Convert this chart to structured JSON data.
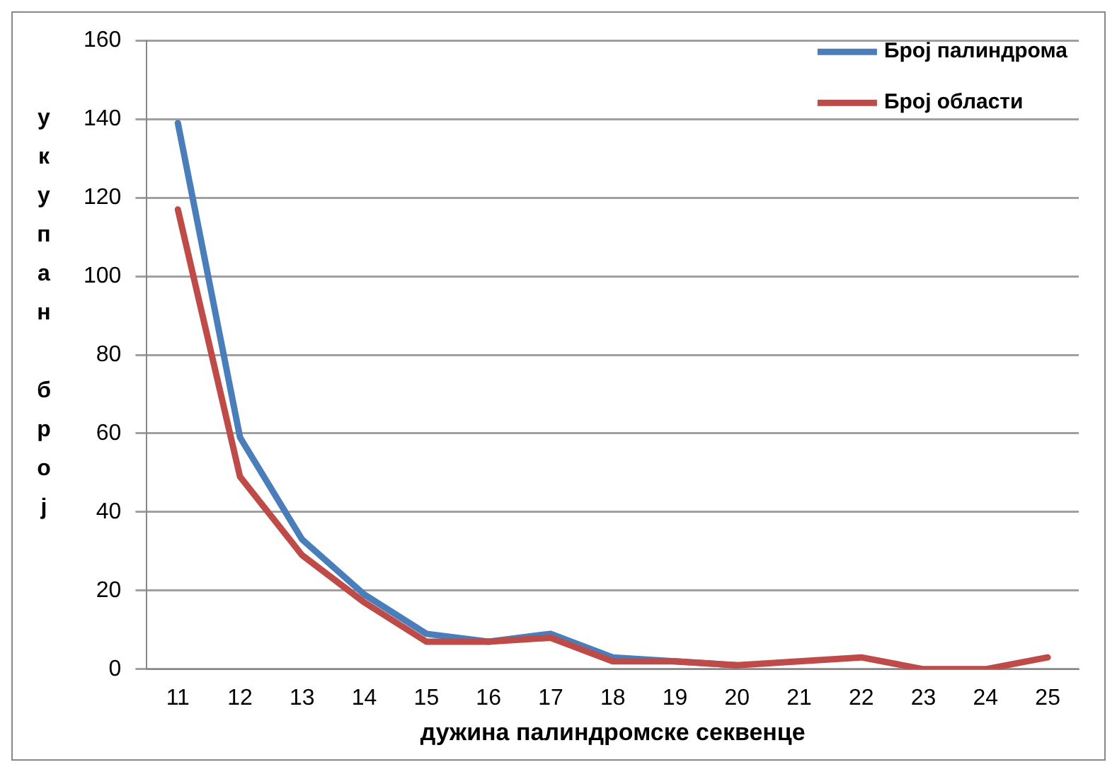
{
  "chart_data": {
    "type": "line",
    "xlabel": "дужина палиндромске секвенце",
    "ylabel": "укупан број",
    "categories": [
      "11",
      "12",
      "13",
      "14",
      "15",
      "16",
      "17",
      "18",
      "19",
      "20",
      "21",
      "22",
      "23",
      "24",
      "25"
    ],
    "series": [
      {
        "name": "Број палиндрома",
        "color": "#4a7ebb",
        "values": [
          139,
          59,
          33,
          19,
          9,
          7,
          9,
          3,
          2,
          1,
          null,
          null,
          null,
          null,
          null
        ]
      },
      {
        "name": "Број области",
        "color": "#be4b48",
        "values": [
          117,
          49,
          29,
          17,
          7,
          7,
          8,
          2,
          2,
          1,
          2,
          3,
          0,
          0,
          3
        ]
      }
    ],
    "ylim": [
      0,
      160
    ],
    "yticks": [
      0,
      20,
      40,
      60,
      80,
      100,
      120,
      140,
      160
    ],
    "grid": "y",
    "legend": "top right",
    "marker": "none",
    "line_style": "solid"
  }
}
